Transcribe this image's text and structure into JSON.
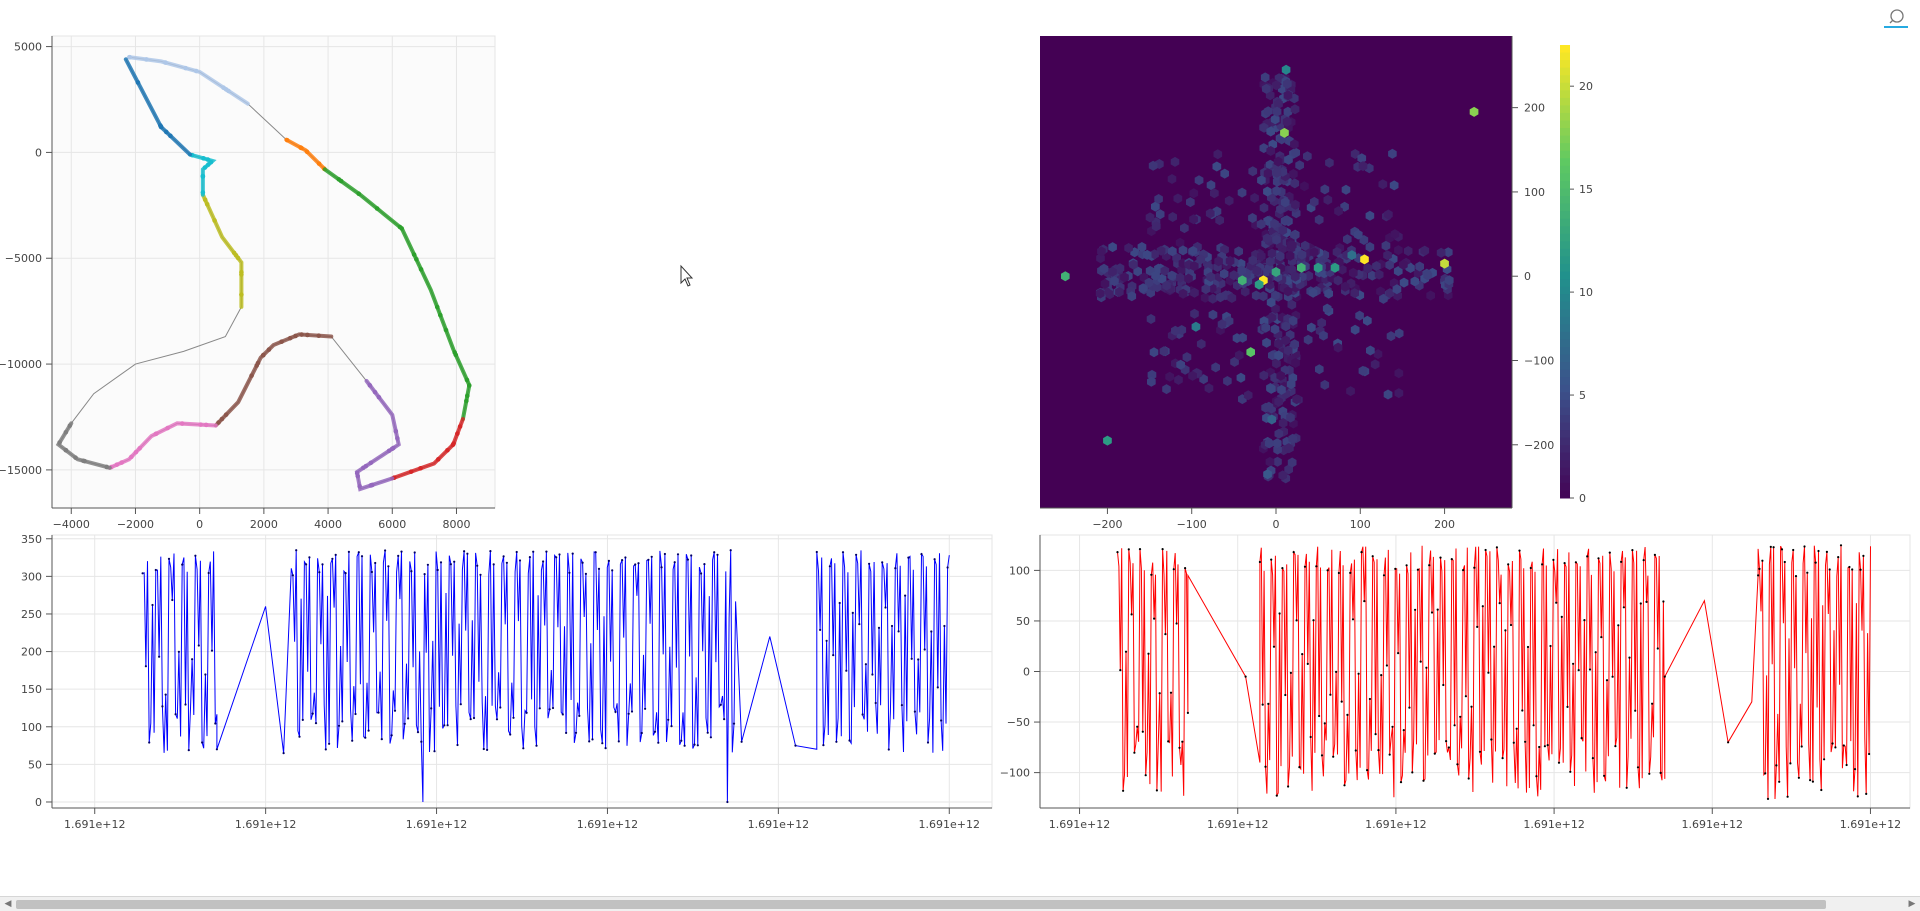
{
  "colors": {
    "frame": "#e5e5e5",
    "grid": "#e6e6e6",
    "track": "#888888",
    "heat_bg": "#440154",
    "speed_line": "#0000ff",
    "speed_points": "#000066",
    "accel_line": "#ff0000",
    "accel_points": "#000000"
  },
  "icons": {
    "toolbar": "hover-tool-icon",
    "scroll_left": "triangle-left-icon",
    "scroll_right": "triangle-right-icon"
  },
  "scrollbar": {
    "left_arrow": "◀",
    "right_arrow": "▶"
  },
  "chart_data": [
    {
      "type": "line",
      "id": "track-map",
      "title": "",
      "xlabel": "",
      "ylabel": "",
      "xlim": [
        -4600,
        9200
      ],
      "ylim": [
        -16800,
        5500
      ],
      "x_ticks": [
        -4000,
        -2000,
        0,
        2000,
        4000,
        6000,
        8000
      ],
      "x_tick_labels": [
        "−4000",
        "−2000",
        "0",
        "2000",
        "4000",
        "6000",
        "8000"
      ],
      "y_ticks": [
        5000,
        0,
        -5000,
        -10000,
        -15000
      ],
      "y_tick_labels": [
        "5000",
        "0",
        "−5000",
        "−10000",
        "−15000"
      ],
      "grid": true,
      "track": [
        [
          -2200,
          4500
        ],
        [
          -1200,
          4300
        ],
        [
          0,
          3800
        ],
        [
          1500,
          2300
        ],
        [
          2700,
          600
        ],
        [
          3300,
          100
        ],
        [
          3900,
          -800
        ],
        [
          5000,
          -2000
        ],
        [
          6300,
          -3600
        ],
        [
          7200,
          -6500
        ],
        [
          7900,
          -9300
        ],
        [
          8400,
          -11000
        ],
        [
          8200,
          -12600
        ],
        [
          7900,
          -13800
        ],
        [
          7300,
          -14700
        ],
        [
          6000,
          -15400
        ],
        [
          5000,
          -15900
        ],
        [
          4900,
          -15100
        ],
        [
          5500,
          -14500
        ],
        [
          6200,
          -13800
        ],
        [
          6000,
          -12400
        ],
        [
          5200,
          -10800
        ],
        [
          4100,
          -8700
        ],
        [
          3100,
          -8600
        ],
        [
          2300,
          -9100
        ],
        [
          1900,
          -9700
        ],
        [
          1200,
          -11800
        ],
        [
          500,
          -12900
        ],
        [
          -700,
          -12800
        ],
        [
          -1500,
          -13400
        ],
        [
          -2200,
          -14500
        ],
        [
          -2800,
          -14900
        ],
        [
          -3800,
          -14500
        ],
        [
          -4400,
          -13800
        ],
        [
          -4000,
          -12800
        ],
        [
          -3300,
          -11400
        ],
        [
          -2000,
          -10000
        ],
        [
          -500,
          -9400
        ],
        [
          800,
          -8700
        ],
        [
          1300,
          -7300
        ],
        [
          1300,
          -5200
        ],
        [
          700,
          -4000
        ],
        [
          100,
          -2000
        ],
        [
          100,
          -800
        ],
        [
          400,
          -400
        ],
        [
          -300,
          -100
        ],
        [
          -1200,
          1200
        ],
        [
          -2300,
          4400
        ]
      ],
      "segments": [
        {
          "name": "1",
          "color": "#aec7e8",
          "range": [
            0,
            3
          ]
        },
        {
          "name": "2",
          "color": "#ff7f0e",
          "range": [
            4,
            6
          ]
        },
        {
          "name": "3",
          "color": "#2ca02c",
          "range": [
            6,
            12
          ]
        },
        {
          "name": "4",
          "color": "#d62728",
          "range": [
            12,
            15
          ]
        },
        {
          "name": "5",
          "color": "#9467bd",
          "range": [
            15,
            21
          ]
        },
        {
          "name": "6",
          "color": "#8c564b",
          "range": [
            22,
            27
          ]
        },
        {
          "name": "7",
          "color": "#e377c2",
          "range": [
            27,
            31
          ]
        },
        {
          "name": "8",
          "color": "#7f7f7f",
          "range": [
            31,
            34
          ]
        },
        {
          "name": "9",
          "color": "#bcbd22",
          "range": [
            39,
            42
          ]
        },
        {
          "name": "10",
          "color": "#17becf",
          "range": [
            42,
            45
          ]
        },
        {
          "name": "11",
          "color": "#1f77b4",
          "range": [
            45,
            47
          ]
        }
      ]
    },
    {
      "type": "heatmap",
      "id": "g-g-hexbin",
      "title": "",
      "xlabel": "",
      "ylabel": "",
      "xlim": [
        -280,
        280
      ],
      "ylim": [
        -275,
        285
      ],
      "x_ticks": [
        -200,
        -100,
        0,
        100,
        200
      ],
      "x_tick_labels": [
        "−200",
        "−100",
        "0",
        "100",
        "200"
      ],
      "y_ticks": [
        200,
        100,
        0,
        -100,
        -200
      ],
      "y_tick_labels": [
        "200",
        "100",
        "0",
        "−100",
        "−200"
      ],
      "colorbar": {
        "range": [
          0,
          22
        ],
        "ticks": [
          0,
          5,
          10,
          15,
          20
        ],
        "tick_labels": [
          "0",
          "5",
          "10",
          "15",
          "20"
        ],
        "palette": "viridis"
      },
      "hot_bins": [
        [
          -15,
          -5,
          22
        ],
        [
          105,
          20,
          22
        ],
        [
          200,
          15,
          20
        ],
        [
          235,
          195,
          18
        ],
        [
          -250,
          0,
          14
        ],
        [
          -200,
          -195,
          12
        ],
        [
          10,
          170,
          18
        ],
        [
          12,
          245,
          10
        ],
        [
          -30,
          -90,
          16
        ],
        [
          -40,
          -5,
          14
        ],
        [
          -20,
          -10,
          12
        ],
        [
          0,
          5,
          13
        ],
        [
          30,
          10,
          14
        ],
        [
          50,
          10,
          12
        ],
        [
          70,
          10,
          12
        ],
        [
          -95,
          -60,
          9
        ],
        [
          90,
          25,
          8
        ],
        [
          -5,
          -170,
          7
        ],
        [
          -10,
          -235,
          6
        ]
      ]
    },
    {
      "type": "line",
      "id": "speed-trace",
      "title": "",
      "xlabel": "",
      "ylabel": "",
      "xlim": [
        -0.05,
        1.05
      ],
      "ylim": [
        -8,
        355
      ],
      "x_ticks": [
        0,
        0.2,
        0.4,
        0.6,
        0.8,
        1.0
      ],
      "x_tick_labels": [
        "1.691e+12",
        "1.691e+12",
        "1.691e+12",
        "1.691e+12",
        "1.691e+12",
        "1.691e+12"
      ],
      "y_ticks": [
        0,
        50,
        100,
        150,
        200,
        250,
        300,
        350
      ],
      "y_tick_labels": [
        "0",
        "50",
        "100",
        "150",
        "200",
        "250",
        "300",
        "350"
      ],
      "series": [
        {
          "low": 65,
          "high": 335,
          "mid": 200,
          "gap_level": 230,
          "dips_to_zero": [
            0.385,
            0.74
          ]
        }
      ],
      "segments": [
        [
          0.056,
          0.143
        ],
        [
          0.23,
          0.75
        ],
        [
          0.845,
          1.0
        ]
      ],
      "gap_path": [
        [
          0.143,
          70
        ],
        [
          0.2,
          260
        ],
        [
          0.221,
          65
        ],
        [
          0.757,
          80
        ],
        [
          0.79,
          220
        ],
        [
          0.82,
          75
        ],
        [
          0.845,
          70
        ]
      ]
    },
    {
      "type": "line",
      "id": "accel-trace",
      "title": "",
      "xlabel": "",
      "ylabel": "",
      "xlim": [
        -0.05,
        1.05
      ],
      "ylim": [
        -135,
        135
      ],
      "x_ticks": [
        0,
        0.2,
        0.4,
        0.6,
        0.8,
        1.0
      ],
      "x_tick_labels": [
        "1.691e+12",
        "1.691e+12",
        "1.691e+12",
        "1.691e+12",
        "1.691e+12",
        "1.691e+12"
      ],
      "y_ticks": [
        100,
        50,
        0,
        -50,
        -100
      ],
      "y_tick_labels": [
        "100",
        "50",
        "0",
        "−50",
        "−100"
      ],
      "series": [
        {
          "low": -128,
          "high": 125,
          "mid": 0
        }
      ],
      "segments": [
        [
          0.048,
          0.137
        ],
        [
          0.228,
          0.74
        ],
        [
          0.858,
          1.0
        ]
      ],
      "gap_path": [
        [
          0.137,
          95
        ],
        [
          0.21,
          -5
        ],
        [
          0.228,
          -90
        ],
        [
          0.74,
          -5
        ],
        [
          0.79,
          70
        ],
        [
          0.82,
          -70
        ],
        [
          0.85,
          -30
        ],
        [
          0.858,
          95
        ]
      ]
    }
  ]
}
